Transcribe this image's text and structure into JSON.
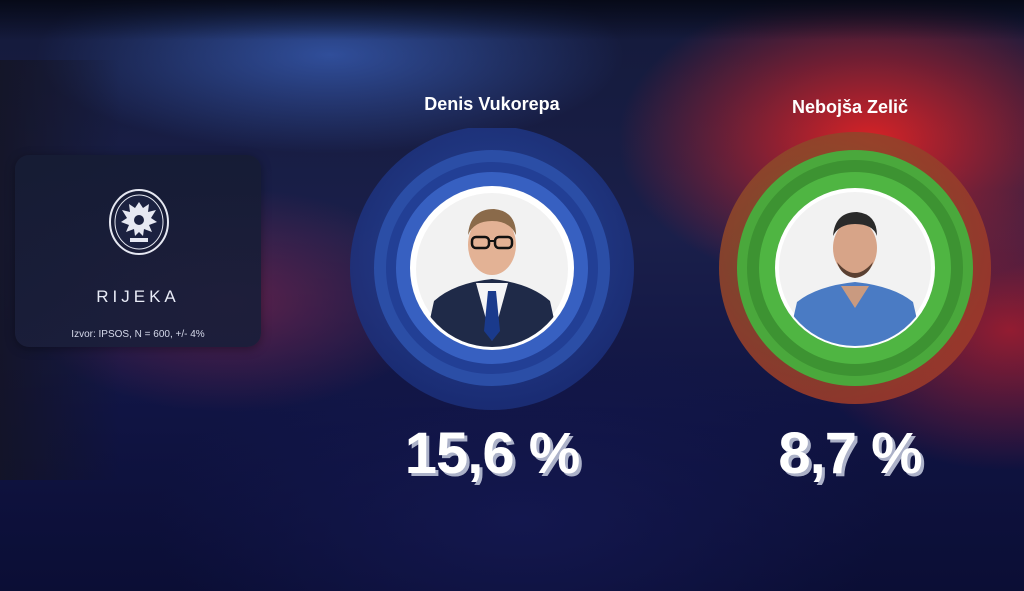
{
  "info_card": {
    "city": "RIJEKA",
    "source": "Izvor: IPSOS, N = 600, +/- 4%",
    "crest_icon": "city-crest-icon"
  },
  "colors": {
    "candidate_1_ring": "#2f56b3",
    "candidate_2_ring": "#4aa83c",
    "candidate_2_outer": "#9a4a2a"
  },
  "chart_data": {
    "type": "bar",
    "categories": [
      "Denis Vukorepa",
      "Nebojša Zelič"
    ],
    "values": [
      15.6,
      8.7
    ],
    "value_labels": [
      "15,6 %",
      "8,7 %"
    ],
    "unit": "%"
  }
}
